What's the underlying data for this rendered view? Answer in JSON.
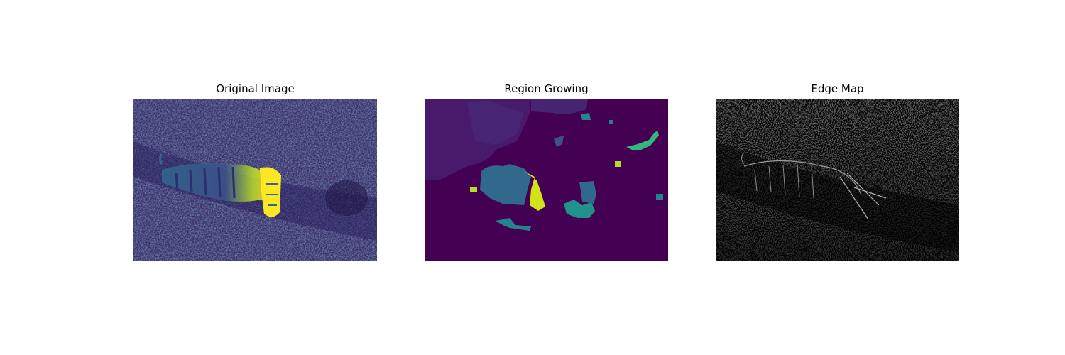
{
  "panels": [
    {
      "title": "Original Image",
      "content": "tiger-in-grass-viridis"
    },
    {
      "title": "Region Growing",
      "content": "segmentation-regions"
    },
    {
      "title": "Edge Map",
      "content": "edge-detection-gray"
    }
  ],
  "colors": {
    "viridis_dark": "#440154",
    "viridis_purple": "#472d7b",
    "viridis_blue": "#31688e",
    "viridis_teal": "#21918c",
    "viridis_green": "#35b779",
    "viridis_yellow": "#fde725",
    "edge_bg": "#000000"
  }
}
